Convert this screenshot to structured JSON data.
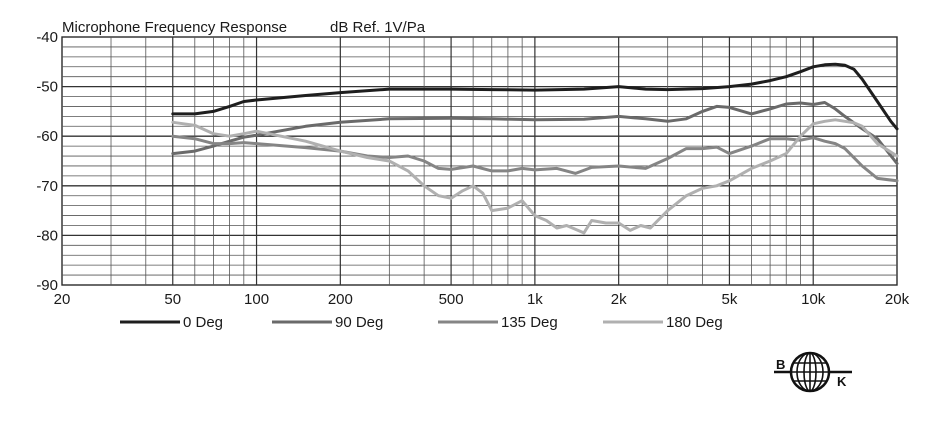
{
  "chart_data": {
    "type": "line",
    "title": "Microphone Frequency Response",
    "subtitle": "dB Ref. 1V/Pa",
    "xlabel": "",
    "ylabel": "",
    "xscale": "log",
    "xlim": [
      20,
      20000
    ],
    "ylim": [
      -90,
      -40
    ],
    "grid": true,
    "legend_position": "bottom",
    "y_ticks": [
      {
        "value": -40,
        "label": "-40"
      },
      {
        "value": -50,
        "label": "-50"
      },
      {
        "value": -60,
        "label": "-60"
      },
      {
        "value": -70,
        "label": "-70"
      },
      {
        "value": -80,
        "label": "-80"
      },
      {
        "value": -90,
        "label": "-90"
      }
    ],
    "x_ticks": [
      {
        "value": 20,
        "label": "20"
      },
      {
        "value": 50,
        "label": "50"
      },
      {
        "value": 100,
        "label": "100"
      },
      {
        "value": 200,
        "label": "200"
      },
      {
        "value": 500,
        "label": "500"
      },
      {
        "value": 1000,
        "label": "1k"
      },
      {
        "value": 2000,
        "label": "2k"
      },
      {
        "value": 5000,
        "label": "5k"
      },
      {
        "value": 10000,
        "label": "10k"
      },
      {
        "value": 20000,
        "label": "20k"
      }
    ],
    "series": [
      {
        "name": "0 Deg",
        "color": "#1e1e1e",
        "points": [
          [
            50,
            -55.5
          ],
          [
            60,
            -55.5
          ],
          [
            70,
            -55
          ],
          [
            80,
            -54
          ],
          [
            90,
            -53
          ],
          [
            100,
            -52.7
          ],
          [
            150,
            -51.8
          ],
          [
            200,
            -51.2
          ],
          [
            300,
            -50.5
          ],
          [
            500,
            -50.5
          ],
          [
            700,
            -50.6
          ],
          [
            1000,
            -50.7
          ],
          [
            1500,
            -50.5
          ],
          [
            2000,
            -50
          ],
          [
            2500,
            -50.5
          ],
          [
            3000,
            -50.6
          ],
          [
            4000,
            -50.4
          ],
          [
            5000,
            -50
          ],
          [
            6000,
            -49.5
          ],
          [
            7000,
            -48.8
          ],
          [
            8000,
            -48
          ],
          [
            9000,
            -47
          ],
          [
            10000,
            -46
          ],
          [
            11000,
            -45.6
          ],
          [
            12000,
            -45.5
          ],
          [
            13000,
            -45.7
          ],
          [
            14000,
            -46.5
          ],
          [
            15000,
            -48.5
          ],
          [
            17000,
            -53
          ],
          [
            19000,
            -57
          ],
          [
            20000,
            -58.5
          ]
        ]
      },
      {
        "name": "90 Deg",
        "color": "#6a6a6a",
        "points": [
          [
            50,
            -63.5
          ],
          [
            60,
            -63
          ],
          [
            70,
            -62
          ],
          [
            80,
            -61
          ],
          [
            90,
            -60.2
          ],
          [
            100,
            -59.8
          ],
          [
            150,
            -58
          ],
          [
            200,
            -57.2
          ],
          [
            300,
            -56.5
          ],
          [
            500,
            -56.4
          ],
          [
            700,
            -56.5
          ],
          [
            1000,
            -56.7
          ],
          [
            1500,
            -56.6
          ],
          [
            2000,
            -56
          ],
          [
            2500,
            -56.5
          ],
          [
            3000,
            -57
          ],
          [
            3500,
            -56.5
          ],
          [
            4000,
            -55
          ],
          [
            4500,
            -54
          ],
          [
            5000,
            -54.2
          ],
          [
            6000,
            -55.5
          ],
          [
            7000,
            -54.5
          ],
          [
            8000,
            -53.5
          ],
          [
            9000,
            -53.3
          ],
          [
            10000,
            -53.6
          ],
          [
            11000,
            -53.2
          ],
          [
            12000,
            -54.5
          ],
          [
            13000,
            -56
          ],
          [
            15000,
            -58.5
          ],
          [
            17000,
            -60.5
          ],
          [
            20000,
            -65.5
          ]
        ]
      },
      {
        "name": "135 Deg",
        "color": "#858585",
        "points": [
          [
            50,
            -60
          ],
          [
            60,
            -60.5
          ],
          [
            70,
            -61.5
          ],
          [
            80,
            -61.5
          ],
          [
            90,
            -61.3
          ],
          [
            100,
            -61.5
          ],
          [
            150,
            -62.3
          ],
          [
            200,
            -63
          ],
          [
            250,
            -64
          ],
          [
            300,
            -64.3
          ],
          [
            350,
            -64
          ],
          [
            400,
            -65
          ],
          [
            450,
            -66.5
          ],
          [
            500,
            -66.7
          ],
          [
            600,
            -66
          ],
          [
            700,
            -67
          ],
          [
            800,
            -67
          ],
          [
            900,
            -66.5
          ],
          [
            1000,
            -66.8
          ],
          [
            1200,
            -66.5
          ],
          [
            1400,
            -67.5
          ],
          [
            1600,
            -66.3
          ],
          [
            2000,
            -66
          ],
          [
            2500,
            -66.5
          ],
          [
            3000,
            -64.5
          ],
          [
            3500,
            -62.5
          ],
          [
            4000,
            -62.5
          ],
          [
            4500,
            -62.2
          ],
          [
            5000,
            -63.5
          ],
          [
            6000,
            -62
          ],
          [
            7000,
            -60.5
          ],
          [
            8000,
            -60.5
          ],
          [
            9000,
            -60.8
          ],
          [
            10000,
            -60.3
          ],
          [
            11000,
            -61
          ],
          [
            12000,
            -61.5
          ],
          [
            13000,
            -62.5
          ],
          [
            15000,
            -66
          ],
          [
            17000,
            -68.5
          ],
          [
            20000,
            -69
          ]
        ]
      },
      {
        "name": "180 Deg",
        "color": "#b0b0b0",
        "points": [
          [
            50,
            -57.2
          ],
          [
            60,
            -57.8
          ],
          [
            70,
            -59.5
          ],
          [
            80,
            -60
          ],
          [
            90,
            -59.5
          ],
          [
            100,
            -59
          ],
          [
            150,
            -61
          ],
          [
            200,
            -63
          ],
          [
            250,
            -64.3
          ],
          [
            300,
            -65
          ],
          [
            350,
            -67
          ],
          [
            400,
            -70
          ],
          [
            450,
            -72
          ],
          [
            500,
            -72.5
          ],
          [
            550,
            -71
          ],
          [
            600,
            -70
          ],
          [
            650,
            -71.5
          ],
          [
            700,
            -75
          ],
          [
            800,
            -74.5
          ],
          [
            900,
            -73
          ],
          [
            1000,
            -76
          ],
          [
            1100,
            -77
          ],
          [
            1200,
            -78.5
          ],
          [
            1300,
            -78
          ],
          [
            1500,
            -79.5
          ],
          [
            1600,
            -77
          ],
          [
            1800,
            -77.5
          ],
          [
            2000,
            -77.5
          ],
          [
            2200,
            -79
          ],
          [
            2400,
            -78
          ],
          [
            2600,
            -78.5
          ],
          [
            3000,
            -75
          ],
          [
            3500,
            -72
          ],
          [
            4000,
            -70.5
          ],
          [
            4500,
            -70
          ],
          [
            5000,
            -69
          ],
          [
            6000,
            -66.5
          ],
          [
            7000,
            -65
          ],
          [
            8000,
            -63.5
          ],
          [
            9000,
            -60
          ],
          [
            10000,
            -57.5
          ],
          [
            11000,
            -57
          ],
          [
            12000,
            -56.7
          ],
          [
            13000,
            -57
          ],
          [
            14000,
            -57.3
          ],
          [
            15000,
            -58
          ],
          [
            17000,
            -61.5
          ],
          [
            20000,
            -64
          ]
        ]
      }
    ]
  },
  "logo": {
    "left_letter": "B",
    "right_letter": "K"
  }
}
